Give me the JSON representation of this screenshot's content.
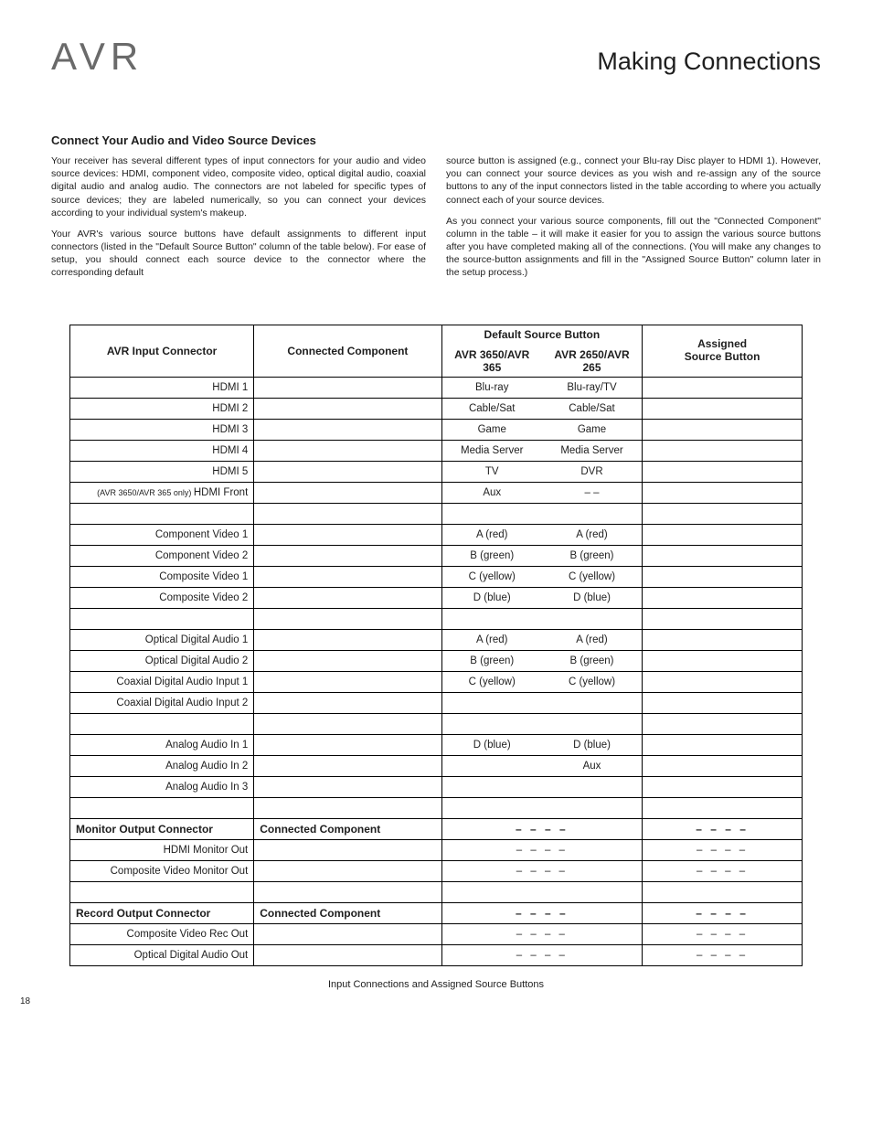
{
  "header": {
    "logo": "AVR",
    "title": "Making Connections"
  },
  "section": {
    "heading": "Connect Your Audio and Video Source Devices",
    "p1": "Your receiver has several different types of input connectors for your audio and video source devices: HDMI, component video, composite video, optical digital audio, coaxial digital audio and analog audio. The connectors are not labeled for specific types of source devices; they are labeled numerically, so you can connect your devices according to your individual system's makeup.",
    "p2": "Your AVR's various source buttons have default assignments to different input connectors (listed in the \"Default Source Button\" column of the table below). For ease of setup, you should connect each source device to the connector where the corresponding default",
    "p3": "source button is assigned (e.g., connect your Blu-ray Disc player to HDMI 1). However, you can connect your source devices as you wish and re-assign any of the source buttons to any of the input connectors listed in the table according to where you actually connect each of your source devices.",
    "p4": "As you connect your various source components, fill out the \"Connected Component\" column in the table – it will make it easier for you to assign the various source buttons after you have completed making all of the connections. (You will make any changes to the source-button assignments and fill in the \"Assigned Source Button\" column later in the setup process.)"
  },
  "table": {
    "headers": {
      "c1": "AVR Input Connector",
      "c2": "Connected Component",
      "c3_top": "Default Source Button",
      "c3_sub1": "AVR 3650/AVR 365",
      "c3_sub2": "AVR 2650/AVR 265",
      "c4_top": "Assigned",
      "c4_bot": "Source Button"
    },
    "groups": [
      {
        "rows": [
          {
            "c": "HDMI 1",
            "d1": "Blu-ray",
            "d2": "Blu-ray/TV"
          },
          {
            "c": "HDMI 2",
            "d1": "Cable/Sat",
            "d2": "Cable/Sat"
          },
          {
            "c": "HDMI 3",
            "d1": "Game",
            "d2": "Game"
          },
          {
            "c": "HDMI 4",
            "d1": "Media Server",
            "d2": "Media Server"
          },
          {
            "c": "HDMI 5",
            "d1": "TV",
            "d2": "DVR"
          },
          {
            "prefix": "(AVR 3650/AVR 365 only) ",
            "c": "HDMI Front",
            "d1": "Aux",
            "d2": "– –"
          }
        ]
      },
      {
        "rows": [
          {
            "c": "Component Video 1",
            "d1": "A (red)",
            "d2": "A (red)"
          },
          {
            "c": "Component Video 2",
            "d1": "B (green)",
            "d2": "B (green)"
          },
          {
            "c": "Composite Video 1",
            "d1": "C (yellow)",
            "d2": "C (yellow)"
          },
          {
            "c": "Composite Video 2",
            "d1": "D (blue)",
            "d2": "D (blue)"
          }
        ]
      },
      {
        "rows": [
          {
            "c": "Optical Digital Audio 1",
            "d1": "A (red)",
            "d2": "A (red)"
          },
          {
            "c": "Optical Digital Audio 2",
            "d1": "B (green)",
            "d2": "B (green)"
          },
          {
            "c": "Coaxial Digital Audio Input 1",
            "d1": "C (yellow)",
            "d2": "C (yellow)"
          },
          {
            "c": "Coaxial Digital Audio Input 2",
            "d1": "",
            "d2": ""
          }
        ]
      },
      {
        "rows": [
          {
            "c": "Analog Audio In 1",
            "d1": "D (blue)",
            "d2": "D (blue)"
          },
          {
            "c": "Analog Audio In 2",
            "d1": "",
            "d2": "Aux"
          },
          {
            "c": "Analog Audio In 3",
            "d1": "",
            "d2": ""
          }
        ]
      },
      {
        "header": {
          "c1": "Monitor Output Connector",
          "c2": "Connected Component"
        },
        "dash": true,
        "rows": [
          {
            "c": "HDMI Monitor Out",
            "dash": true
          },
          {
            "c": "Composite Video Monitor Out",
            "dash": true
          }
        ]
      },
      {
        "header": {
          "c1": "Record Output Connector",
          "c2": "Connected Component"
        },
        "dash": true,
        "rows": [
          {
            "c": "Composite Video Rec Out",
            "dash": true
          },
          {
            "c": "Optical Digital Audio Out",
            "dash": true
          }
        ]
      }
    ],
    "dash_text": "– – – –",
    "caption": "Input Connections and Assigned Source Buttons"
  },
  "page_number": "18"
}
